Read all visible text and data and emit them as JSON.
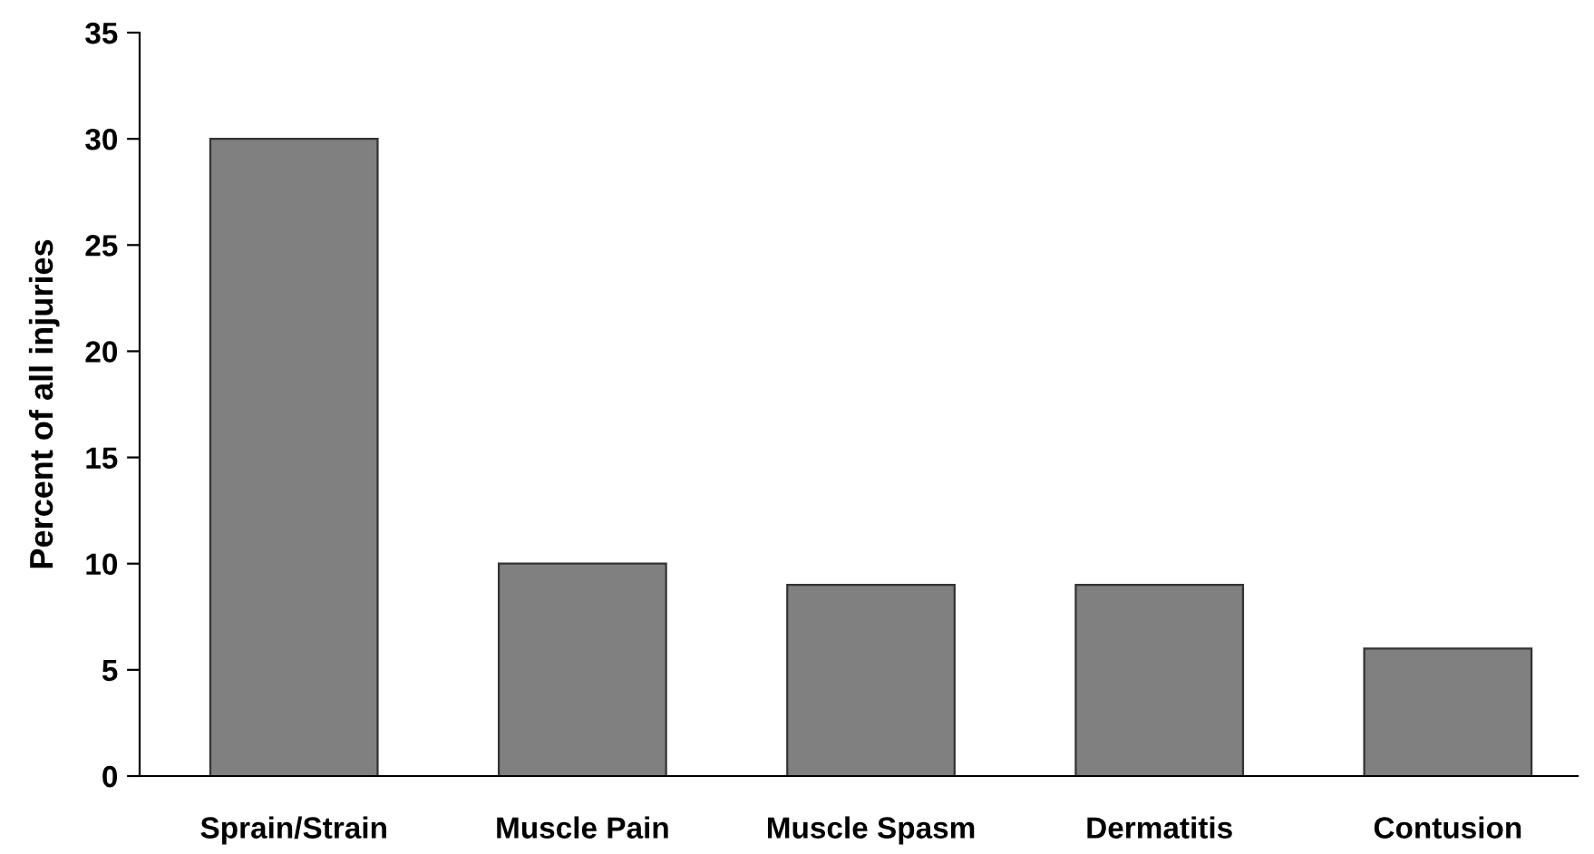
{
  "chart_data": {
    "type": "bar",
    "ylabel": "Percent of all injuries",
    "categories": [
      "Sprain/Strain",
      "Muscle Pain",
      "Muscle Spasm",
      "Dermatitis",
      "Contusion"
    ],
    "values": [
      30,
      10,
      9,
      9,
      6
    ],
    "color": "#808080",
    "ylim": [
      0,
      35
    ],
    "yticks": [
      0,
      5,
      10,
      15,
      20,
      25,
      30,
      35
    ],
    "grid": false
  }
}
